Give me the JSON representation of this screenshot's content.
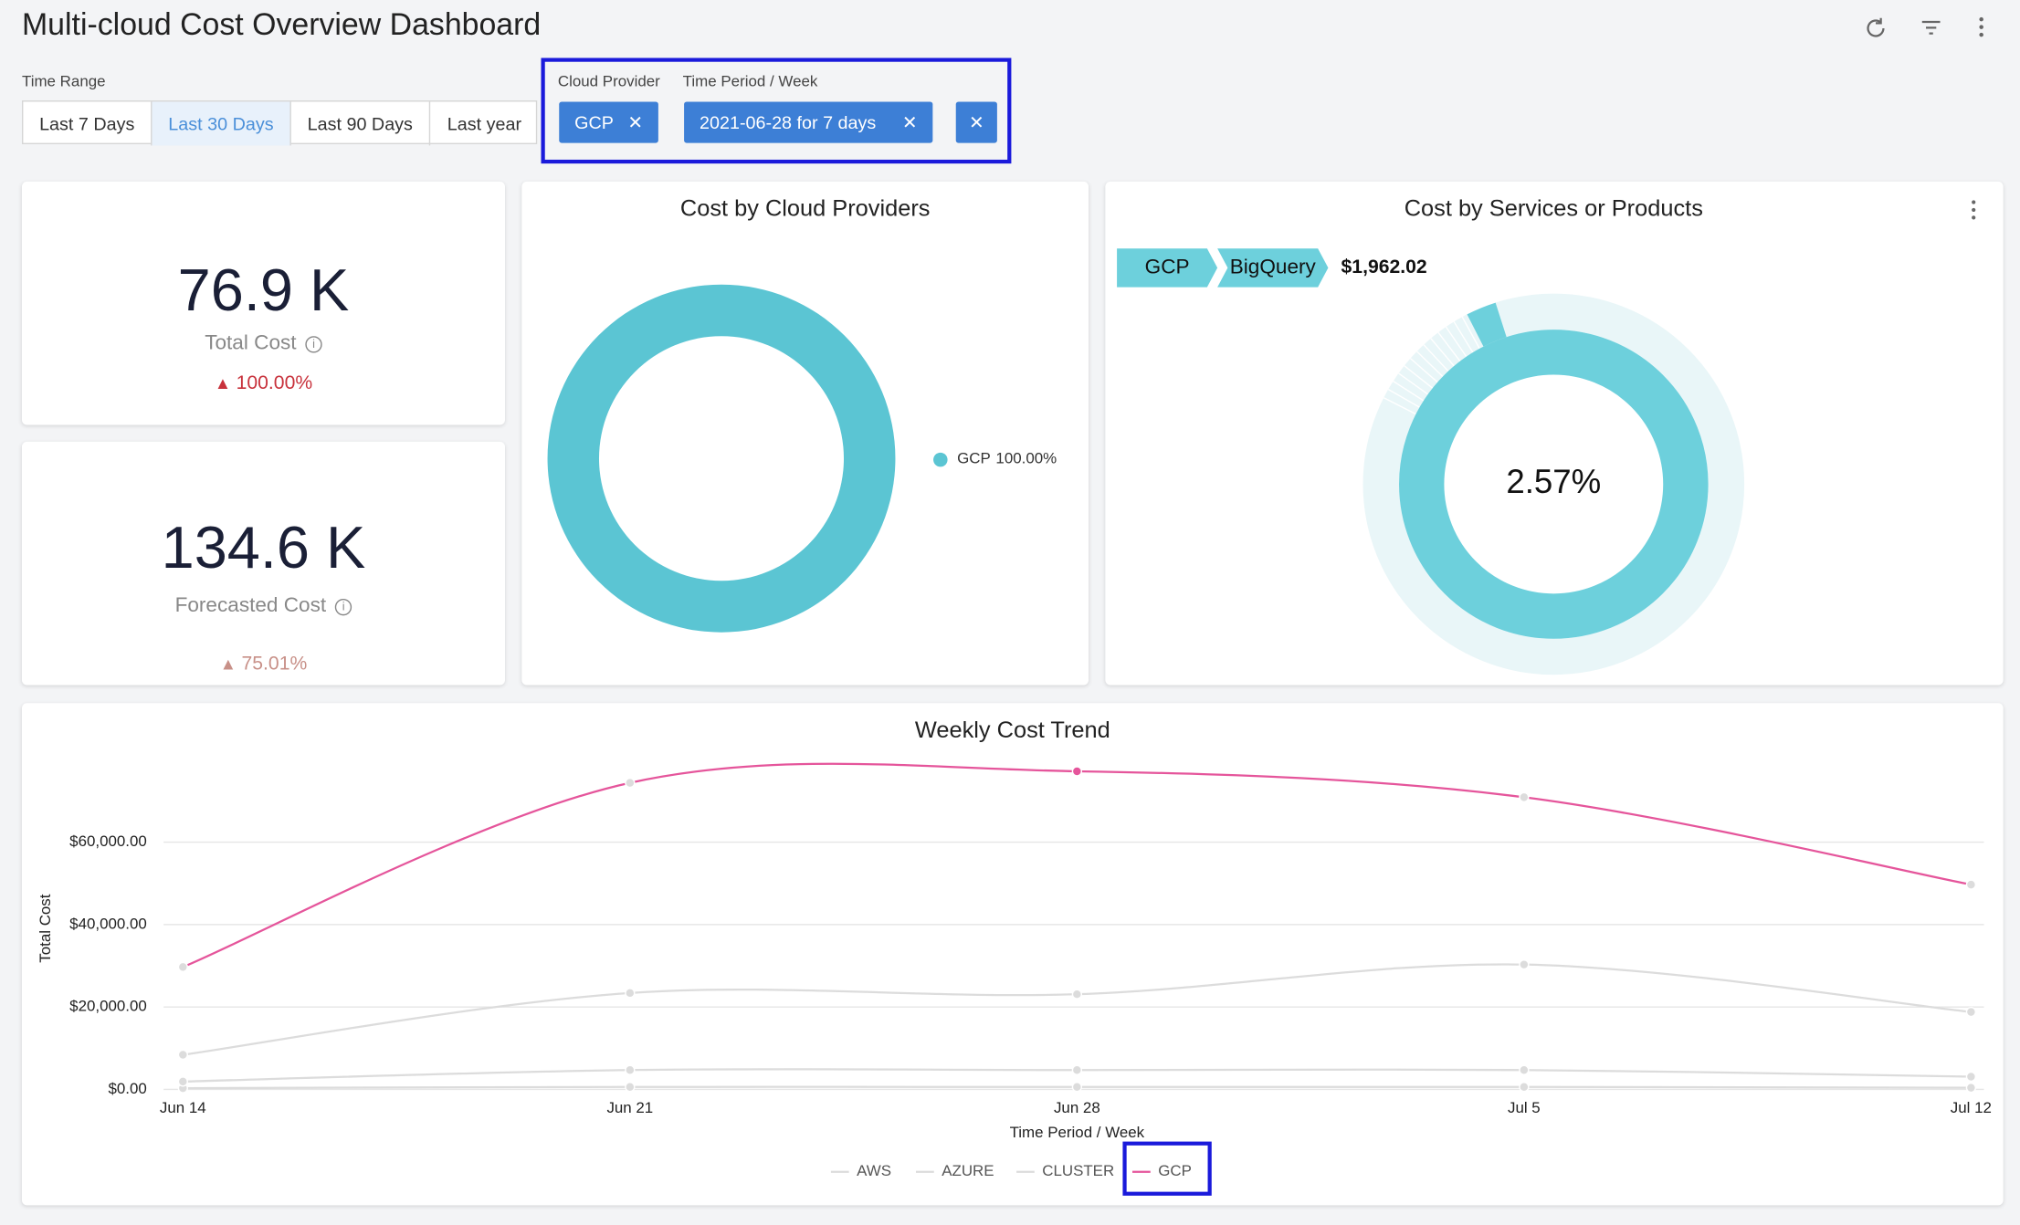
{
  "header": {
    "title": "Multi-cloud Cost Overview Dashboard"
  },
  "filters": {
    "time_range": {
      "label": "Time Range",
      "options": [
        "Last 7 Days",
        "Last 30 Days",
        "Last 90 Days",
        "Last year"
      ],
      "selected": 1
    },
    "cloud_provider": {
      "label": "Cloud Provider",
      "value": "GCP"
    },
    "time_period": {
      "label": "Time Period / Week",
      "value": "2021-06-28 for 7 days"
    }
  },
  "kpis": [
    {
      "value": "76.9 K",
      "label": "Total Cost",
      "change": "100.00%",
      "color": "#c8323c"
    },
    {
      "value": "134.6 K",
      "label": "Forecasted Cost",
      "change": "75.01%",
      "color": "#c89088"
    }
  ],
  "chart_data": [
    {
      "type": "pie",
      "title": "Cost by Cloud Providers",
      "categories": [
        "GCP"
      ],
      "values": [
        100
      ],
      "value_labels": [
        "100.00%"
      ],
      "colors": [
        "#5bc5d3"
      ]
    },
    {
      "type": "sunburst",
      "title": "Cost by Services or Products",
      "breadcrumb": [
        "GCP",
        "BigQuery"
      ],
      "amount": "$1,962.02",
      "categories": [
        "BigQuery"
      ],
      "values": [
        2.57
      ],
      "value_labels": [
        "2.57%"
      ],
      "color": "#6dd0dc"
    },
    {
      "type": "line",
      "title": "Weekly Cost Trend",
      "x_label": "Time Period / Week",
      "y_label": "Total Cost",
      "x": [
        "Jun 14",
        "Jun 21",
        "Jun 28",
        "Jul 5",
        "Jul 12"
      ],
      "series": [
        {
          "name": "AWS",
          "color": "#dcdcdc",
          "values": [
            8400,
            23400,
            23100,
            30300,
            18800
          ]
        },
        {
          "name": "AZURE",
          "color": "#dcdcdc",
          "values": [
            300,
            600,
            600,
            600,
            400
          ]
        },
        {
          "name": "CLUSTER",
          "color": "#dcdcdc",
          "values": [
            1900,
            4700,
            4700,
            4700,
            3100
          ]
        },
        {
          "name": "GCP",
          "color": "#e5559b",
          "values": [
            29700,
            74400,
            77200,
            70900,
            49700
          ]
        }
      ],
      "ylim": [
        0,
        80000
      ],
      "yticks": [
        {
          "value": 0,
          "label": "$0.00"
        },
        {
          "value": 20000,
          "label": "$20,000.00"
        },
        {
          "value": 40000,
          "label": "$40,000.00"
        },
        {
          "value": 60000,
          "label": "$60,000.00"
        }
      ],
      "grid": true
    }
  ]
}
